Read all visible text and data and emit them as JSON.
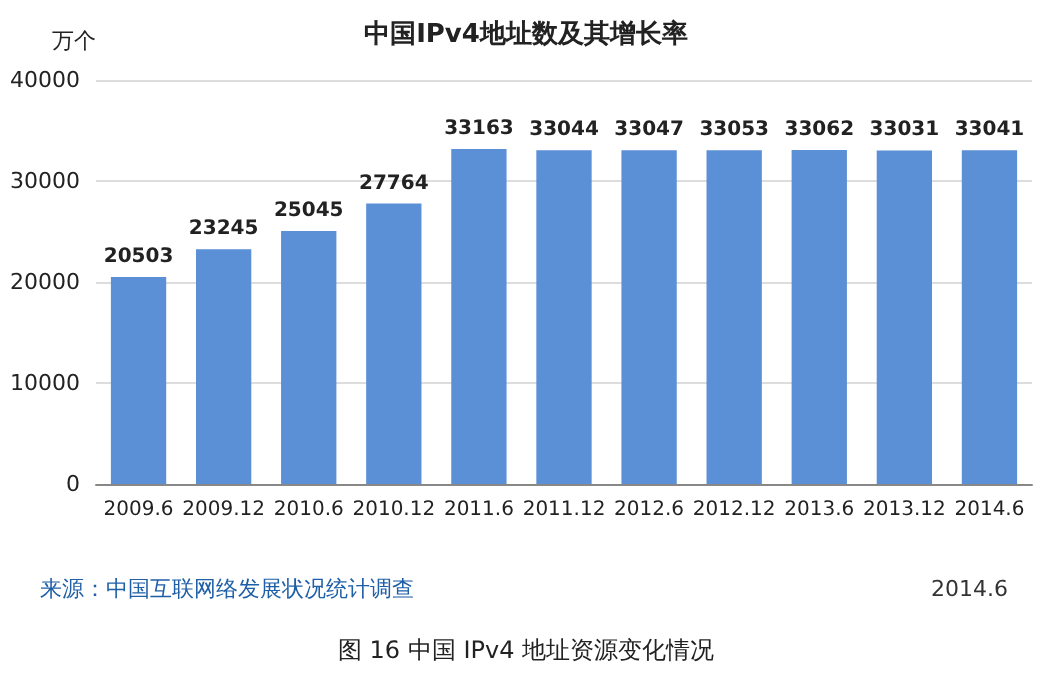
{
  "chart_data": {
    "type": "bar",
    "title": "中国IPv4地址数及其增长率",
    "ylabel": "万个",
    "categories": [
      "2009.6",
      "2009.12",
      "2010.6",
      "2010.12",
      "2011.6",
      "2011.12",
      "2012.6",
      "2012.12",
      "2013.6",
      "2013.12",
      "2014.6"
    ],
    "values": [
      20503,
      23245,
      25045,
      27764,
      33163,
      33044,
      33047,
      33053,
      33062,
      33031,
      33041
    ],
    "color": "#5b8fd6",
    "ylim": [
      0,
      40000
    ],
    "yticks": [
      0,
      10000,
      20000,
      30000,
      40000
    ],
    "grid": "y",
    "data_labels": true,
    "annotations": [
      "来源：中国互联网络发展状况统计调查",
      "2014.6",
      "图 16 中国 IPv4 地址资源变化情况"
    ]
  }
}
